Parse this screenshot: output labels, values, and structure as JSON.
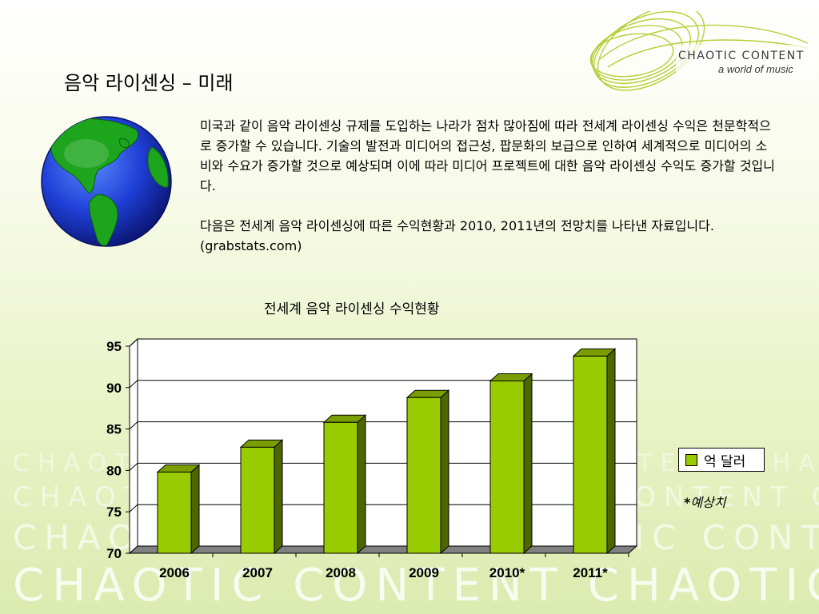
{
  "brand": {
    "name": "CHAOTIC CONTENT",
    "tagline": "a world of music",
    "watermark": "CHAOTIC CONTENT CHAOTIC CONTENT CHAOTIC CONTENT"
  },
  "slide": {
    "title": "음악 라이센싱 – 미래",
    "paragraphs": [
      "미국과 같이 음악 라이센싱 규제를 도입하는 나라가 점차 많아짐에 따라 전세계 라이센싱 수익은 천문학적으로 증가할 수 있습니다. 기술의 발전과 미디어의 접근성, 팝문화의 보급으로 인하여 세계적으로 미디어의 소비와 수요가 증가할 것으로 예상되며 이에 따라 미디어 프로젝트에 대한 음악 라이센싱 수익도 증가할 것입니다.",
      "다음은 전세계 음악 라이센싱에 따른 수익현황과 2010, 2011년의 전망치를 나타낸 자료입니다. (grabstats.com)"
    ]
  },
  "chart_data": {
    "type": "bar",
    "title": "전세계 음악 라이센싱 수익현황",
    "categories": [
      "2006",
      "2007",
      "2008",
      "2009",
      "2010*",
      "2011*"
    ],
    "series": [
      {
        "name": "억 달러",
        "values": [
          79.8,
          82.8,
          85.8,
          88.8,
          90.8,
          93.8
        ]
      }
    ],
    "ylim": [
      70,
      95
    ],
    "yticks": [
      70,
      75,
      80,
      85,
      90,
      95
    ],
    "grid": true,
    "legend_position": "right",
    "note_marker": "*",
    "note_text": "예상치",
    "colors": {
      "bar_front": "#99cc00",
      "bar_side": "#4d6600",
      "bar_top": "#7a9e00",
      "floor": "#808080"
    }
  }
}
